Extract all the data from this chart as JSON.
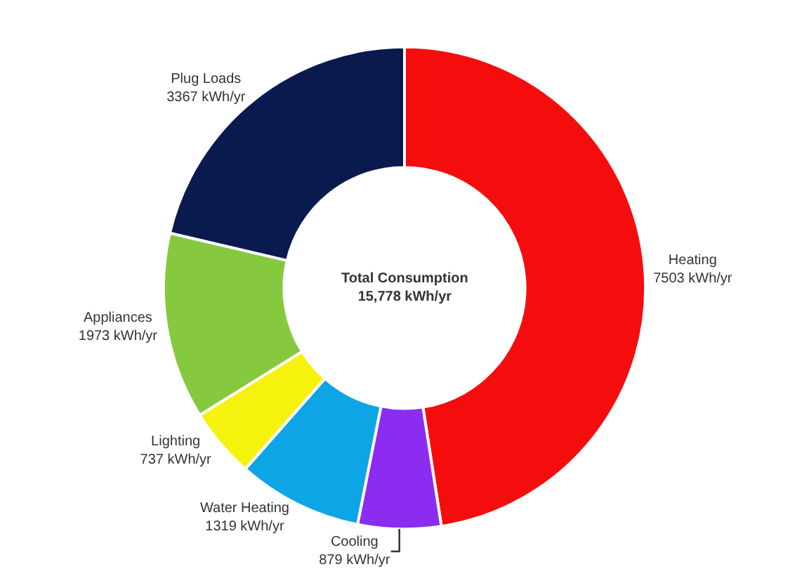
{
  "chart_data": {
    "type": "donut",
    "categories": [
      "Heating",
      "Cooling",
      "Water Heating",
      "Lighting",
      "Appliances",
      "Plug Loads"
    ],
    "values": [
      7503,
      879,
      1319,
      737,
      1973,
      3367
    ],
    "value_labels": [
      "7503 kWh/yr",
      "879 kWh/yr",
      "1319 kWh/yr",
      "737 kWh/yr",
      "1973 kWh/yr",
      "3367 kWh/yr"
    ],
    "colors": [
      "#f50d0d",
      "#8b2cf0",
      "#0ea5e6",
      "#f5f20d",
      "#86c93f",
      "#0a1a4f"
    ],
    "annotations": [
      "Total Consumption\n15,778 kWh/yr"
    ],
    "legend": false
  }
}
